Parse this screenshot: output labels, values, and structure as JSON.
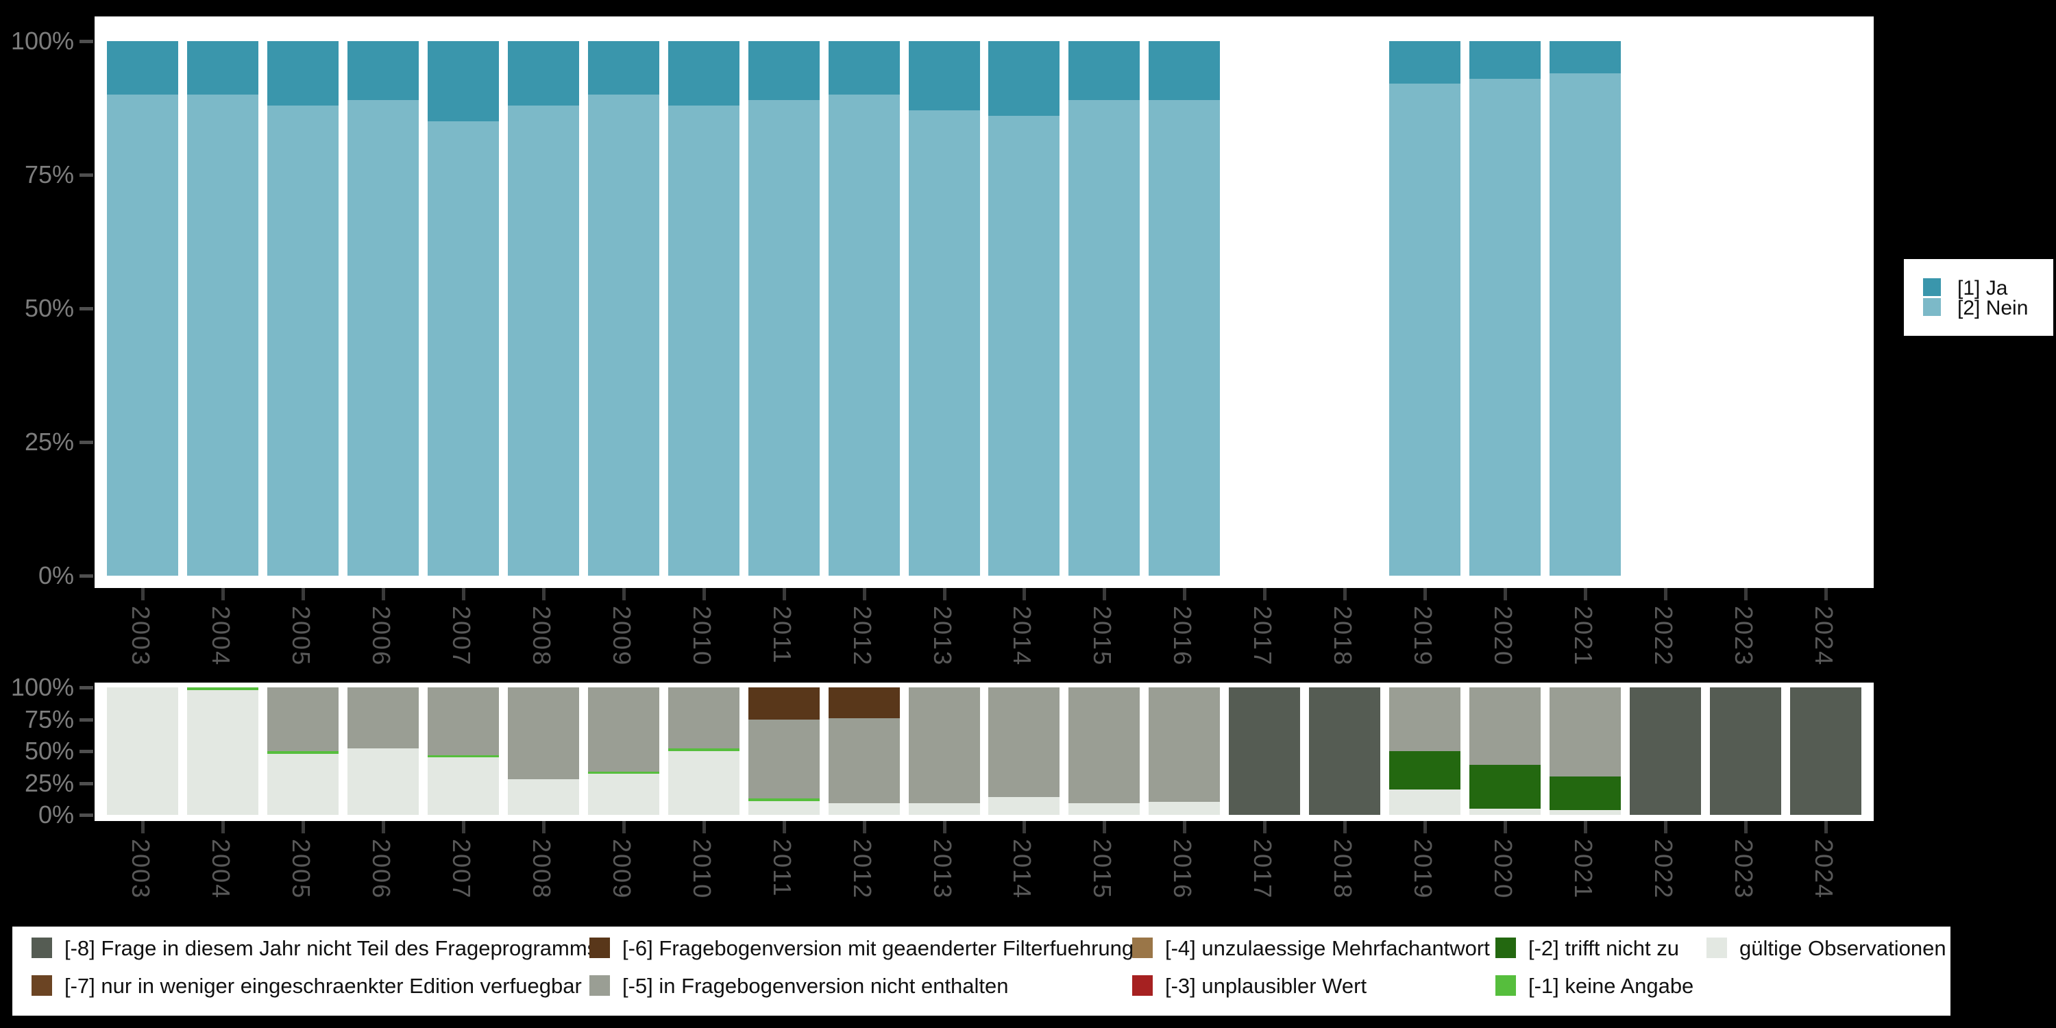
{
  "background_color": "#000000",
  "panel_color": "#FFFFFF",
  "axis": {
    "y_tick_labels": [
      "100%",
      "75%",
      "50%",
      "25%",
      "0%"
    ],
    "x_tick_labels": [
      "2003",
      "2004",
      "2005",
      "2006",
      "2007",
      "2008",
      "2009",
      "2010",
      "2011",
      "2012",
      "2013",
      "2014",
      "2015",
      "2016",
      "2017",
      "2018",
      "2019",
      "2020",
      "2021",
      "2022",
      "2023",
      "2024"
    ]
  },
  "chart_data": [
    {
      "type": "bar",
      "stacked": true,
      "title": "",
      "xlabel": "",
      "ylabel": "",
      "ylim": [
        0,
        100
      ],
      "grid": false,
      "legend_position": "right",
      "categories": [
        "2003",
        "2004",
        "2005",
        "2006",
        "2007",
        "2008",
        "2009",
        "2010",
        "2011",
        "2012",
        "2013",
        "2014",
        "2015",
        "2016",
        "2017",
        "2018",
        "2019",
        "2020",
        "2021",
        "2022",
        "2023",
        "2024"
      ],
      "series": [
        {
          "name": "[2] Nein",
          "color": "#7CB9C8",
          "values": [
            90,
            90,
            88,
            89,
            85,
            88,
            90,
            88,
            89,
            90,
            87,
            86,
            89,
            89,
            0,
            0,
            92,
            93,
            94,
            0,
            0,
            0
          ]
        },
        {
          "name": "[1] Ja",
          "color": "#3A96AC",
          "values": [
            10,
            10,
            12,
            11,
            15,
            12,
            10,
            12,
            11,
            10,
            13,
            14,
            11,
            11,
            0,
            0,
            8,
            7,
            6,
            0,
            0,
            0
          ]
        }
      ]
    },
    {
      "type": "bar",
      "stacked": true,
      "title": "",
      "xlabel": "",
      "ylabel": "",
      "ylim": [
        0,
        100
      ],
      "grid": false,
      "legend_position": "bottom",
      "categories": [
        "2003",
        "2004",
        "2005",
        "2006",
        "2007",
        "2008",
        "2009",
        "2010",
        "2011",
        "2012",
        "2013",
        "2014",
        "2015",
        "2016",
        "2017",
        "2018",
        "2019",
        "2020",
        "2021",
        "2022",
        "2023",
        "2024"
      ],
      "series": [
        {
          "name": "gültige Observationen",
          "color": "#E3E8E2",
          "values": [
            100,
            98,
            48,
            52,
            45,
            28,
            32,
            50,
            11,
            9,
            9,
            14,
            9,
            10,
            0,
            0,
            20,
            5,
            4,
            0,
            0,
            0
          ]
        },
        {
          "name": "[-1] keine Angabe",
          "color": "#56BE3D",
          "values": [
            0,
            2,
            2,
            0,
            2,
            0,
            2,
            2,
            2,
            0,
            0,
            0,
            0,
            0,
            0,
            0,
            0,
            0,
            0,
            0,
            0,
            0
          ]
        },
        {
          "name": "[-2] trifft nicht zu",
          "color": "#236810",
          "values": [
            0,
            0,
            0,
            0,
            0,
            0,
            0,
            0,
            0,
            0,
            0,
            0,
            0,
            0,
            0,
            0,
            30,
            34,
            26,
            0,
            0,
            0
          ]
        },
        {
          "name": "[-3] unplausibler Wert",
          "color": "#A62121",
          "values": [
            0,
            0,
            0,
            0,
            0,
            0,
            0,
            0,
            0,
            0,
            0,
            0,
            0,
            0,
            0,
            0,
            0,
            0,
            0,
            0,
            0,
            0
          ]
        },
        {
          "name": "[-4] unzulaessige Mehrfachantwort",
          "color": "#9A7648",
          "values": [
            0,
            0,
            0,
            0,
            0,
            0,
            0,
            0,
            0,
            0,
            0,
            0,
            0,
            0,
            0,
            0,
            0,
            0,
            0,
            0,
            0,
            0
          ]
        },
        {
          "name": "[-5] in Fragebogenversion nicht enthalten",
          "color": "#9A9E94",
          "values": [
            0,
            0,
            50,
            48,
            53,
            72,
            66,
            48,
            62,
            67,
            91,
            86,
            91,
            90,
            0,
            0,
            50,
            61,
            70,
            0,
            0,
            0
          ]
        },
        {
          "name": "[-6] Fragebogenversion mit geaenderter Filterfuehrung",
          "color": "#59371A",
          "values": [
            0,
            0,
            0,
            0,
            0,
            0,
            0,
            0,
            25,
            24,
            0,
            0,
            0,
            0,
            0,
            0,
            0,
            0,
            0,
            0,
            0,
            0
          ]
        },
        {
          "name": "[-7] nur in weniger eingeschraenkter Edition verfuegbar",
          "color": "#6B4423",
          "values": [
            0,
            0,
            0,
            0,
            0,
            0,
            0,
            0,
            0,
            0,
            0,
            0,
            0,
            0,
            0,
            0,
            0,
            0,
            0,
            0,
            0,
            0
          ]
        },
        {
          "name": "[-8] Frage in diesem Jahr nicht Teil des Frageprogramms",
          "color": "#555C53",
          "values": [
            0,
            0,
            0,
            0,
            0,
            0,
            0,
            0,
            0,
            0,
            0,
            0,
            0,
            0,
            100,
            100,
            0,
            0,
            0,
            100,
            100,
            100
          ]
        }
      ]
    }
  ],
  "legend_right": {
    "items": [
      {
        "label": "[1] Ja",
        "color": "#3A96AC"
      },
      {
        "label": "[2] Nein",
        "color": "#7CB9C8"
      }
    ]
  },
  "legend_bottom": {
    "columns": [
      [
        {
          "label": "[-8] Frage in diesem Jahr nicht Teil des Frageprogramms",
          "color": "#555C53"
        },
        {
          "label": "[-7] nur in weniger eingeschraenkter Edition verfuegbar",
          "color": "#6B4423"
        }
      ],
      [
        {
          "label": "[-6] Fragebogenversion mit geaenderter Filterfuehrung",
          "color": "#59371A"
        },
        {
          "label": "[-5] in Fragebogenversion nicht enthalten",
          "color": "#9A9E94"
        }
      ],
      [
        {
          "label": "[-4] unzulaessige Mehrfachantwort",
          "color": "#9A7648"
        },
        {
          "label": "[-3] unplausibler Wert",
          "color": "#A62121"
        }
      ],
      [
        {
          "label": "[-2] trifft nicht zu",
          "color": "#236810"
        },
        {
          "label": "[-1] keine Angabe",
          "color": "#56BE3D"
        }
      ],
      [
        {
          "label": "gültige Observationen",
          "color": "#E3E8E2"
        }
      ]
    ]
  }
}
